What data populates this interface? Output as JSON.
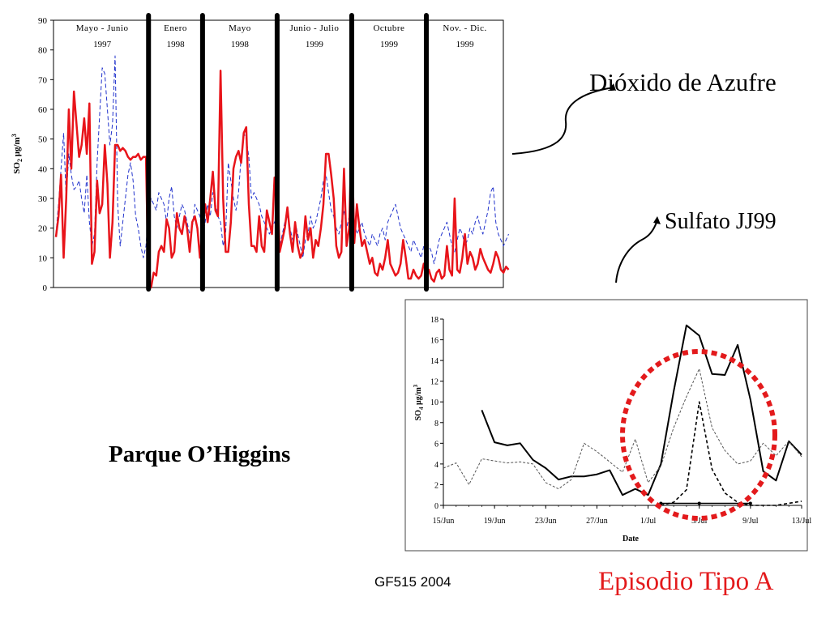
{
  "slide": {
    "title_so2": "Dióxido de Azufre",
    "title_sulfate": "Sulfato JJ99",
    "station": "Parque O’Higgins",
    "footer": "GF515 2004",
    "episode": "Episodio Tipo A",
    "colors": {
      "red": "#e8141a",
      "blue": "#2233cc",
      "dotted_red": "#e31a1c"
    }
  },
  "chart_data": [
    {
      "type": "line",
      "title": "",
      "ylabel_main": "SO",
      "ylabel_sub": "2",
      "ylabel_unit": "μg/m",
      "ylabel_sup": "3",
      "xlabel": "",
      "ylim": [
        0,
        90
      ],
      "yticks": [
        "0",
        "10",
        "20",
        "30",
        "40",
        "50",
        "60",
        "70",
        "80",
        "90"
      ],
      "periods": [
        {
          "name": "Mayo - Junio",
          "year": "1997",
          "range": [
            0,
            36
          ]
        },
        {
          "name": "Enero",
          "year": "1998",
          "range": [
            36,
            57
          ]
        },
        {
          "name": "Mayo",
          "year": "1998",
          "range": [
            57,
            86
          ]
        },
        {
          "name": "Junio - Julio",
          "year": "1999",
          "range": [
            86,
            115
          ]
        },
        {
          "name": "Octubre",
          "year": "1999",
          "range": [
            115,
            144
          ]
        },
        {
          "name": "Nov. - Dic.",
          "year": "1999",
          "range": [
            144,
            174
          ]
        }
      ],
      "separators": [
        36,
        57,
        86,
        115,
        144
      ],
      "x_count": 174,
      "series": [
        {
          "name": "SO2 red",
          "values": [
            17,
            24,
            38,
            10,
            30,
            60,
            40,
            66,
            55,
            44,
            48,
            57,
            45,
            62,
            8,
            12,
            36,
            25,
            28,
            48,
            35,
            10,
            22,
            48,
            48,
            46,
            47,
            46,
            44,
            43,
            44,
            44,
            45,
            43,
            44,
            44,
            0,
            0,
            5,
            4,
            12,
            14,
            12,
            23,
            20,
            10,
            12,
            25,
            20,
            18,
            24,
            20,
            12,
            22,
            24,
            20,
            10,
            20,
            28,
            22,
            30,
            39,
            26,
            24,
            73,
            30,
            12,
            12,
            22,
            40,
            44,
            46,
            42,
            52,
            54,
            28,
            14,
            14,
            12,
            24,
            14,
            12,
            26,
            22,
            18,
            37,
            36,
            12,
            16,
            20,
            27,
            18,
            12,
            22,
            14,
            10,
            12,
            24,
            16,
            20,
            10,
            16,
            14,
            20,
            28,
            45,
            45,
            38,
            30,
            14,
            10,
            12,
            40,
            14,
            20,
            52,
            15,
            28,
            20,
            14,
            16,
            12,
            8,
            10,
            5,
            4,
            8,
            6,
            10,
            16,
            8,
            6,
            4,
            5,
            8,
            16,
            10,
            3,
            3,
            6,
            4,
            3,
            4,
            8,
            5,
            6,
            3,
            2,
            5,
            6,
            3,
            4,
            14,
            6,
            4,
            30,
            6,
            5,
            10,
            18,
            8,
            12,
            10,
            6,
            8,
            13,
            10,
            8,
            6,
            5,
            8,
            12,
            10,
            6,
            5,
            7,
            6
          ]
        },
        {
          "name": "SO2 blue dashed",
          "values": [
            18,
            28,
            40,
            52,
            30,
            45,
            38,
            33,
            34,
            36,
            30,
            25,
            38,
            22,
            14,
            18,
            42,
            58,
            74,
            72,
            60,
            48,
            55,
            78,
            28,
            14,
            22,
            30,
            38,
            42,
            36,
            24,
            20,
            14,
            10,
            14,
            25,
            30,
            28,
            26,
            32,
            30,
            28,
            22,
            30,
            34,
            24,
            20,
            24,
            28,
            26,
            22,
            18,
            20,
            28,
            26,
            24,
            18,
            22,
            28,
            24,
            32,
            28,
            24,
            22,
            14,
            18,
            42,
            36,
            30,
            26,
            32,
            44,
            52,
            50,
            44,
            30,
            32,
            30,
            28,
            24,
            22,
            20,
            18,
            20,
            22,
            24,
            14,
            18,
            22,
            24,
            20,
            16,
            22,
            18,
            14,
            10,
            16,
            18,
            24,
            20,
            22,
            26,
            30,
            36,
            38,
            32,
            26,
            24,
            20,
            18,
            22,
            26,
            20,
            24,
            30,
            22,
            18,
            20,
            22,
            18,
            16,
            14,
            18,
            16,
            14,
            18,
            20,
            16,
            22,
            24,
            26,
            28,
            24,
            20,
            18,
            16,
            14,
            12,
            16,
            14,
            12,
            10,
            14,
            16,
            14,
            12,
            8,
            12,
            16,
            18,
            20,
            22,
            18,
            14,
            12,
            16,
            20,
            18,
            14,
            16,
            20,
            18,
            22,
            24,
            20,
            18,
            22,
            26,
            32,
            34,
            22,
            18,
            16,
            14,
            16,
            18
          ]
        }
      ]
    },
    {
      "type": "line",
      "title": "",
      "xlabel": "Date",
      "ylabel_main": "SO",
      "ylabel_sub": "4",
      "ylabel_unit": "μg/m",
      "ylabel_sup": "3",
      "ylim": [
        0,
        18
      ],
      "yticks": [
        "0",
        "2",
        "4",
        "6",
        "8",
        "10",
        "12",
        "14",
        "16",
        "18"
      ],
      "xlim": [
        0,
        28
      ],
      "xticks": [
        {
          "label": "15/Jun",
          "x": 0
        },
        {
          "label": "19/Jun",
          "x": 4
        },
        {
          "label": "23/Jun",
          "x": 8
        },
        {
          "label": "27/Jun",
          "x": 12
        },
        {
          "label": "1/Jul",
          "x": 16
        },
        {
          "label": "5/Jul",
          "x": 20
        },
        {
          "label": "9/Jul",
          "x": 24
        },
        {
          "label": "13/Jul",
          "x": 28
        }
      ],
      "series": [
        {
          "name": "solid black",
          "x": [
            3,
            4,
            5,
            6,
            7,
            8,
            9,
            10,
            11,
            12,
            13,
            14,
            15,
            16,
            17,
            18,
            19,
            20,
            21,
            22,
            23,
            24,
            25,
            26,
            27,
            28
          ],
          "values": [
            9.2,
            6.1,
            5.8,
            6.0,
            4.4,
            3.6,
            2.5,
            2.8,
            2.8,
            3.0,
            3.4,
            1.0,
            1.6,
            1.0,
            4.0,
            11.0,
            17.4,
            16.4,
            12.7,
            12.6,
            15.5,
            10.2,
            3.3,
            2.4,
            6.2,
            4.9
          ]
        },
        {
          "name": "thin dashed gray",
          "x": [
            0,
            1,
            2,
            3,
            4,
            5,
            6,
            7,
            8,
            9,
            10,
            11,
            12,
            13,
            14,
            15,
            16,
            17,
            18,
            19,
            20,
            21,
            22,
            23,
            24,
            25,
            26,
            27,
            28
          ],
          "values": [
            3.6,
            4.1,
            2.0,
            4.5,
            4.3,
            4.1,
            4.2,
            4.0,
            2.2,
            1.6,
            2.5,
            6.0,
            5.2,
            4.2,
            3.2,
            6.4,
            2.2,
            3.8,
            7.5,
            10.5,
            13.2,
            7.5,
            5.3,
            4.0,
            4.3,
            6.0,
            4.8,
            6.2,
            4.7
          ]
        },
        {
          "name": "black dashed",
          "x": [
            17,
            18,
            19,
            20,
            21,
            22,
            23,
            24,
            25,
            26,
            27,
            28
          ],
          "values": [
            0.0,
            0.3,
            1.5,
            10.0,
            3.5,
            1.2,
            0.3,
            0.0,
            0.0,
            0.0,
            0.2,
            0.4
          ]
        }
      ]
    }
  ]
}
